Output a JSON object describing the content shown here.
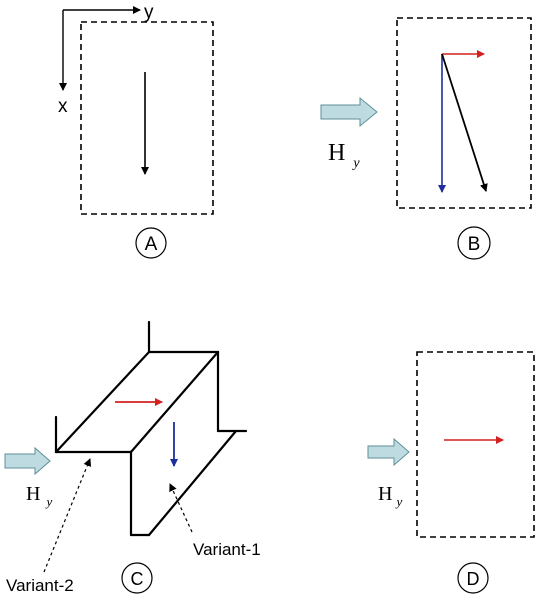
{
  "axes": {
    "x_label": "x",
    "y_label": "y"
  },
  "field": {
    "symbol": "H",
    "subscript": "y"
  },
  "panels": {
    "a": {
      "label": "A"
    },
    "b": {
      "label": "B"
    },
    "c": {
      "label": "C",
      "variant_1": "Variant-1",
      "variant_2": "Variant-2"
    },
    "d": {
      "label": "D"
    }
  },
  "colors": {
    "red_arrow": "#d42020",
    "blue_arrow": "#1f2f9a",
    "black": "#000000",
    "field_arrow_fill": "#bfdbe2",
    "field_arrow_stroke": "#5f8f98"
  }
}
